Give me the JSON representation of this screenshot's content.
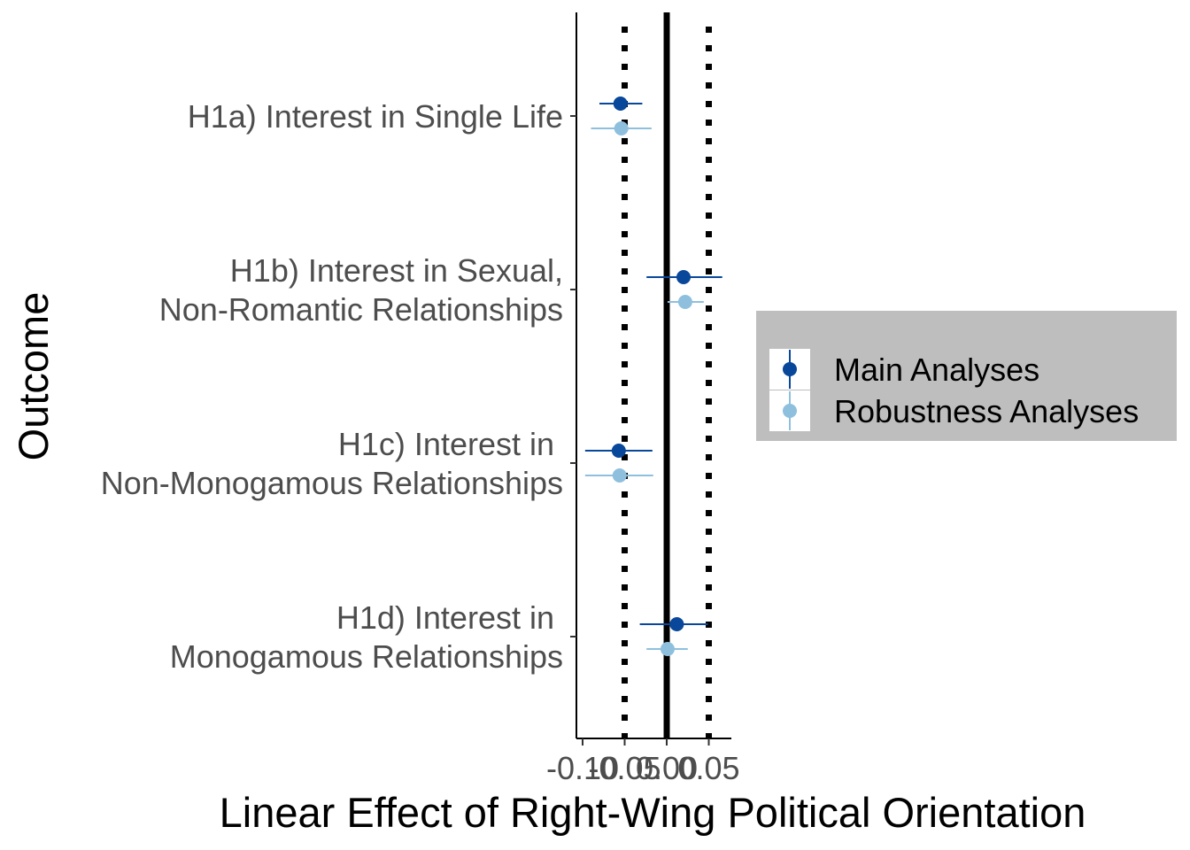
{
  "chart_data": {
    "type": "scatter",
    "subtype": "forest-plot-horizontal-error-bars",
    "xlabel": "Linear Effect of Right-Wing Political Orientation",
    "ylabel": "Outcome",
    "xlim": [
      -0.105,
      0.075
    ],
    "x_ticks": [
      -0.1,
      -0.05,
      0.0,
      0.05
    ],
    "x_tick_labels": [
      "-0.10",
      "-0.05",
      "0.00",
      "0.05"
    ],
    "categories": [
      [
        "H1a) Interest in Single Life"
      ],
      [
        "H1b) Interest in Sexual,",
        "Non-Romantic Relationships"
      ],
      [
        "H1c) Interest in ",
        "Non-Monogamous Relationships"
      ],
      [
        "H1d) Interest in ",
        "Monogamous Relationships"
      ]
    ],
    "reference_lines": [
      {
        "x": 0.0,
        "style": "solid"
      },
      {
        "x": -0.05,
        "style": "dotted"
      },
      {
        "x": 0.05,
        "style": "dotted"
      }
    ],
    "series": [
      {
        "name": "Main Analyses",
        "color": "#08479a",
        "estimates": [
          -0.055,
          0.02,
          -0.057,
          0.012
        ],
        "ci_low": [
          -0.08,
          -0.024,
          -0.097,
          -0.032
        ],
        "ci_high": [
          -0.029,
          0.066,
          -0.017,
          0.049
        ]
      },
      {
        "name": "Robustness Analyses",
        "color": "#8ec0de",
        "estimates": [
          -0.054,
          0.022,
          -0.056,
          0.001
        ],
        "ci_low": [
          -0.09,
          0.001,
          -0.097,
          -0.024
        ],
        "ci_high": [
          -0.018,
          0.044,
          -0.016,
          0.025
        ]
      }
    ],
    "legend_position": "right",
    "legend_background": "#bebebe",
    "grid": false
  }
}
